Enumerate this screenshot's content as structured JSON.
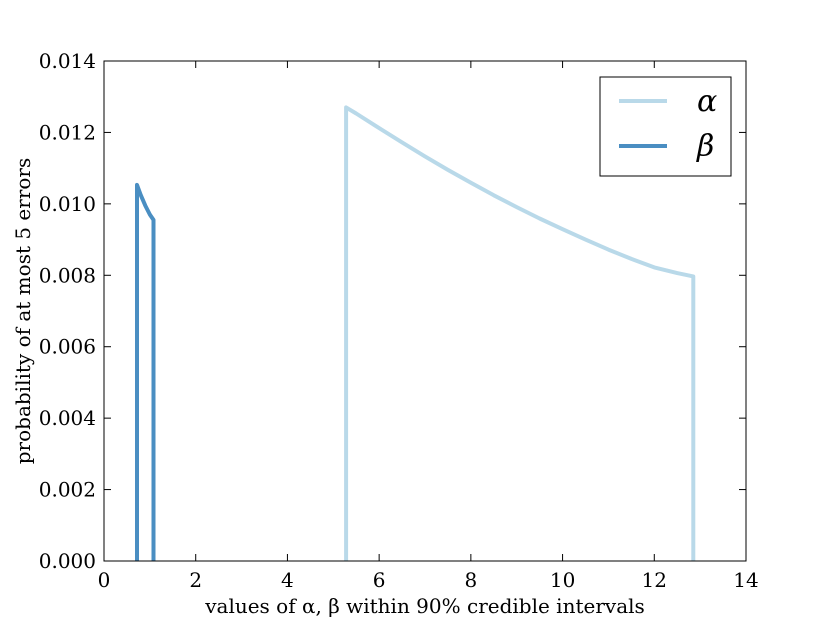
{
  "chart_data": {
    "type": "line",
    "xlabel": "values of α, β within 90% credible intervals",
    "ylabel": "probability of at most 5 errors",
    "xlim": [
      0,
      14
    ],
    "ylim": [
      0,
      0.014
    ],
    "xticks": [
      "0",
      "2",
      "4",
      "6",
      "8",
      "10",
      "12",
      "14"
    ],
    "yticks": [
      "0.000",
      "0.002",
      "0.004",
      "0.006",
      "0.008",
      "0.010",
      "0.012",
      "0.014"
    ],
    "grid": false,
    "legend_position": "top-right",
    "series": [
      {
        "name": "α",
        "color": "#b9d9e9",
        "points": [
          [
            5.28,
            0.0
          ],
          [
            5.28,
            0.0127
          ],
          [
            5.5,
            0.01253
          ],
          [
            6.0,
            0.01212
          ],
          [
            6.5,
            0.01172
          ],
          [
            7.0,
            0.01133
          ],
          [
            7.5,
            0.01095
          ],
          [
            8.0,
            0.01059
          ],
          [
            8.5,
            0.01024
          ],
          [
            9.0,
            0.00991
          ],
          [
            9.5,
            0.00959
          ],
          [
            10.0,
            0.00929
          ],
          [
            10.5,
            0.009
          ],
          [
            11.0,
            0.00872
          ],
          [
            11.5,
            0.00846
          ],
          [
            12.0,
            0.00822
          ],
          [
            12.5,
            0.00806
          ],
          [
            12.85,
            0.00797
          ],
          [
            12.85,
            0.0
          ]
        ]
      },
      {
        "name": "β",
        "color": "#4a8ec2",
        "points": [
          [
            0.72,
            0.0
          ],
          [
            0.72,
            0.01053
          ],
          [
            0.8,
            0.01025
          ],
          [
            0.9,
            0.00995
          ],
          [
            1.0,
            0.0097
          ],
          [
            1.08,
            0.00955
          ],
          [
            1.08,
            0.0
          ]
        ]
      }
    ]
  }
}
